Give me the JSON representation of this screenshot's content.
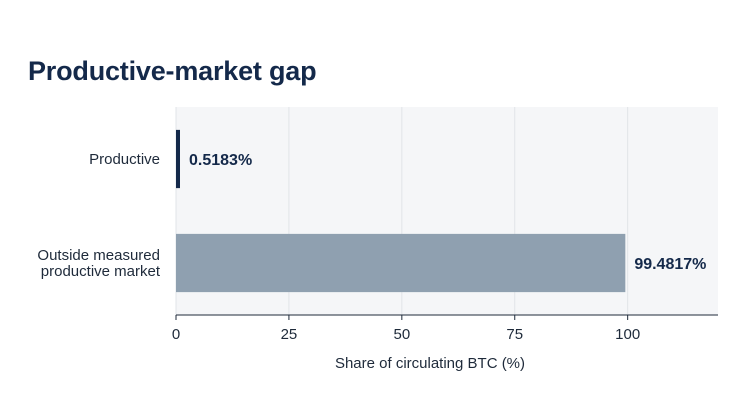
{
  "chart_data": {
    "type": "bar",
    "orientation": "horizontal",
    "title": "Productive-market gap",
    "xlabel": "Share of circulating BTC (%)",
    "ylabel": "",
    "xlim": [
      0,
      120
    ],
    "xticks": [
      0,
      25,
      50,
      75,
      100
    ],
    "grid": true,
    "categories": [
      [
        "Productive"
      ],
      [
        "Outside measured",
        "productive market"
      ]
    ],
    "values": [
      0.5183,
      99.4817
    ],
    "value_labels": [
      "0.5183%",
      "99.4817%"
    ],
    "colors": [
      "#14294a",
      "#8fa0b0"
    ]
  }
}
